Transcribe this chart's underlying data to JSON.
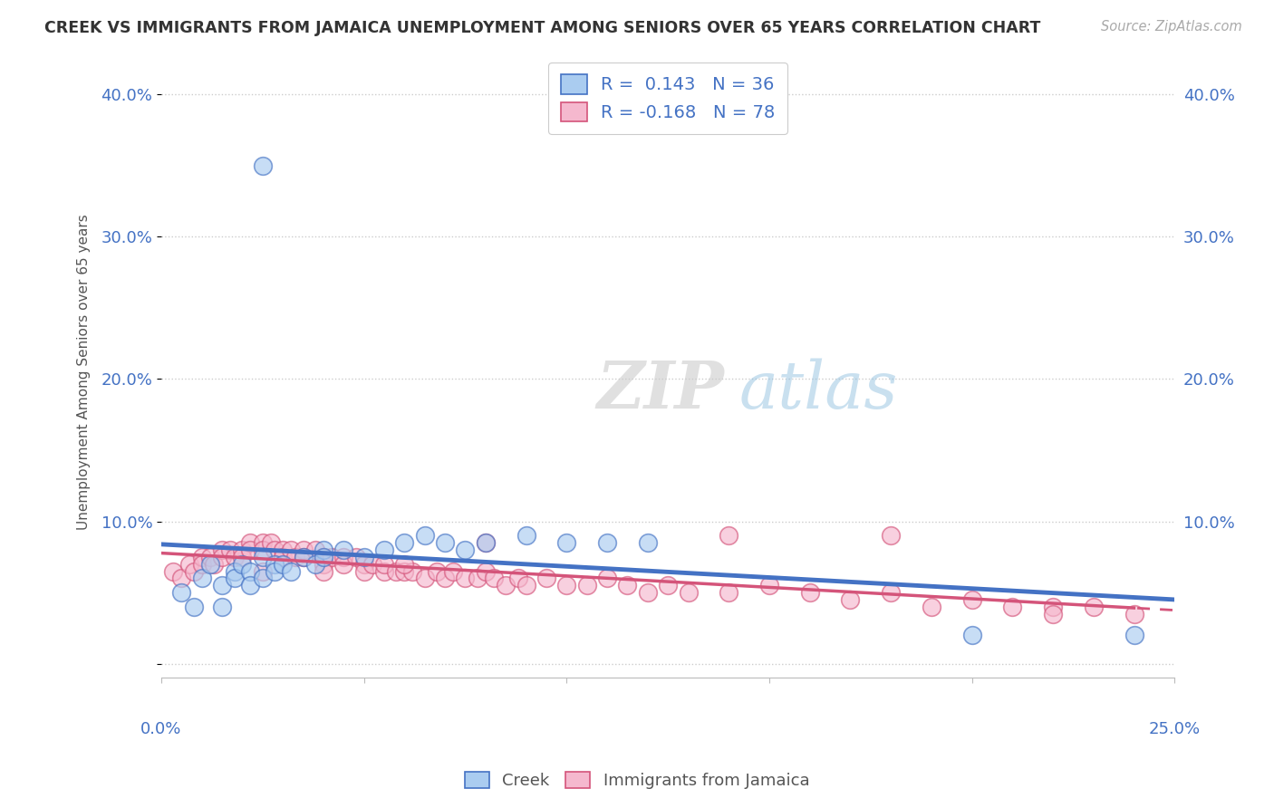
{
  "title": "CREEK VS IMMIGRANTS FROM JAMAICA UNEMPLOYMENT AMONG SENIORS OVER 65 YEARS CORRELATION CHART",
  "source": "Source: ZipAtlas.com",
  "ylabel": "Unemployment Among Seniors over 65 years",
  "legend_creek_R": "0.143",
  "legend_creek_N": "36",
  "legend_jamaica_R": "-0.168",
  "legend_jamaica_N": "78",
  "creek_color": "#aaccf0",
  "creek_line_color": "#4472c4",
  "jamaica_color": "#f5b8ce",
  "jamaica_line_color": "#d4547a",
  "xlim": [
    0.0,
    0.25
  ],
  "ylim": [
    -0.01,
    0.42
  ],
  "background_color": "#ffffff",
  "grid_color": "#cccccc",
  "ytick_values": [
    0.0,
    0.1,
    0.2,
    0.3,
    0.4
  ],
  "ytick_labels": [
    "",
    "10.0%",
    "20.0%",
    "30.0%",
    "40.0%"
  ],
  "creek_scatter_x": [
    0.005,
    0.008,
    0.01,
    0.012,
    0.015,
    0.015,
    0.018,
    0.018,
    0.02,
    0.022,
    0.022,
    0.025,
    0.025,
    0.028,
    0.028,
    0.03,
    0.032,
    0.035,
    0.038,
    0.04,
    0.04,
    0.045,
    0.05,
    0.055,
    0.06,
    0.065,
    0.07,
    0.075,
    0.08,
    0.09,
    0.1,
    0.11,
    0.12,
    0.025,
    0.2,
    0.24
  ],
  "creek_scatter_y": [
    0.05,
    0.04,
    0.06,
    0.07,
    0.055,
    0.04,
    0.065,
    0.06,
    0.07,
    0.065,
    0.055,
    0.075,
    0.06,
    0.07,
    0.065,
    0.07,
    0.065,
    0.075,
    0.07,
    0.08,
    0.075,
    0.08,
    0.075,
    0.08,
    0.085,
    0.09,
    0.085,
    0.08,
    0.085,
    0.09,
    0.085,
    0.085,
    0.085,
    0.35,
    0.02,
    0.02
  ],
  "jamaica_scatter_x": [
    0.003,
    0.005,
    0.007,
    0.008,
    0.01,
    0.01,
    0.012,
    0.013,
    0.015,
    0.015,
    0.017,
    0.018,
    0.02,
    0.02,
    0.022,
    0.022,
    0.025,
    0.025,
    0.027,
    0.028,
    0.03,
    0.03,
    0.032,
    0.033,
    0.035,
    0.035,
    0.038,
    0.04,
    0.04,
    0.042,
    0.045,
    0.045,
    0.048,
    0.05,
    0.05,
    0.052,
    0.055,
    0.055,
    0.058,
    0.06,
    0.062,
    0.065,
    0.068,
    0.07,
    0.072,
    0.075,
    0.078,
    0.08,
    0.082,
    0.085,
    0.088,
    0.09,
    0.095,
    0.1,
    0.105,
    0.11,
    0.115,
    0.12,
    0.125,
    0.13,
    0.14,
    0.15,
    0.16,
    0.17,
    0.18,
    0.19,
    0.2,
    0.21,
    0.22,
    0.22,
    0.23,
    0.24,
    0.18,
    0.14,
    0.08,
    0.06,
    0.04,
    0.025
  ],
  "jamaica_scatter_y": [
    0.065,
    0.06,
    0.07,
    0.065,
    0.075,
    0.07,
    0.075,
    0.07,
    0.08,
    0.075,
    0.08,
    0.075,
    0.08,
    0.075,
    0.085,
    0.08,
    0.085,
    0.08,
    0.085,
    0.08,
    0.08,
    0.075,
    0.08,
    0.075,
    0.08,
    0.075,
    0.08,
    0.075,
    0.07,
    0.075,
    0.075,
    0.07,
    0.075,
    0.07,
    0.065,
    0.07,
    0.065,
    0.07,
    0.065,
    0.065,
    0.065,
    0.06,
    0.065,
    0.06,
    0.065,
    0.06,
    0.06,
    0.065,
    0.06,
    0.055,
    0.06,
    0.055,
    0.06,
    0.055,
    0.055,
    0.06,
    0.055,
    0.05,
    0.055,
    0.05,
    0.05,
    0.055,
    0.05,
    0.045,
    0.05,
    0.04,
    0.045,
    0.04,
    0.04,
    0.035,
    0.04,
    0.035,
    0.09,
    0.09,
    0.085,
    0.07,
    0.065,
    0.065
  ],
  "watermark_zip": "ZIP",
  "watermark_atlas": "atlas"
}
